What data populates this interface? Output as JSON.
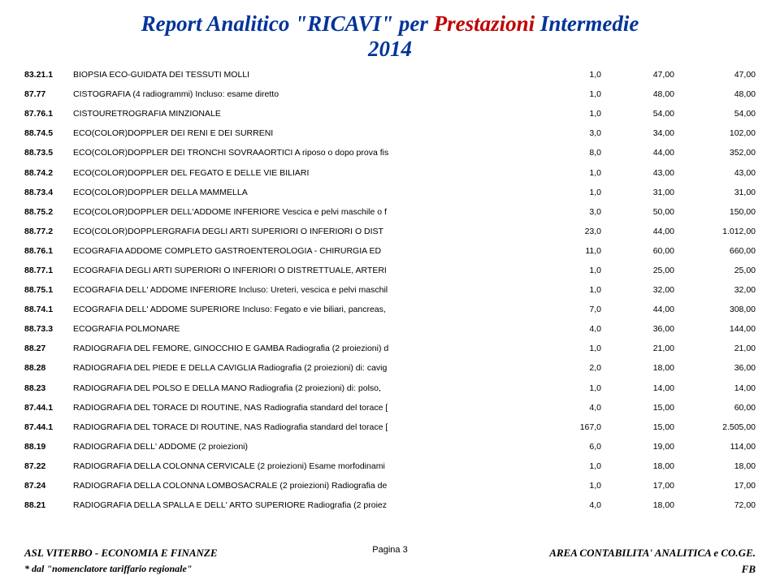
{
  "header": {
    "title_part1": "Report Analitico \"RICAVI\" per",
    "title_part2": " Prestazioni",
    "title_part3": "  Intermedie",
    "year": "2014"
  },
  "rows": [
    {
      "code": "83.21.1",
      "desc": "BIOPSIA ECO-GUIDATA DEI TESSUTI MOLLI",
      "n1": "1,0",
      "n2": "47,00",
      "n3": "47,00"
    },
    {
      "code": "87.77",
      "desc": "CISTOGRAFIA (4 radiogrammi) Incluso: esame diretto",
      "n1": "1,0",
      "n2": "48,00",
      "n3": "48,00"
    },
    {
      "code": "87.76.1",
      "desc": "CISTOURETROGRAFIA MINZIONALE",
      "n1": "1,0",
      "n2": "54,00",
      "n3": "54,00"
    },
    {
      "code": "88.74.5",
      "desc": "ECO(COLOR)DOPPLER DEI RENI E DEI SURRENI",
      "n1": "3,0",
      "n2": "34,00",
      "n3": "102,00"
    },
    {
      "code": "88.73.5",
      "desc": "ECO(COLOR)DOPPLER DEI TRONCHI SOVRAAORTICI A riposo o dopo prova fis",
      "n1": "8,0",
      "n2": "44,00",
      "n3": "352,00"
    },
    {
      "code": "88.74.2",
      "desc": "ECO(COLOR)DOPPLER DEL FEGATO E DELLE VIE BILIARI",
      "n1": "1,0",
      "n2": "43,00",
      "n3": "43,00"
    },
    {
      "code": "88.73.4",
      "desc": "ECO(COLOR)DOPPLER DELLA MAMMELLA",
      "n1": "1,0",
      "n2": "31,00",
      "n3": "31,00"
    },
    {
      "code": "88.75.2",
      "desc": "ECO(COLOR)DOPPLER DELL'ADDOME INFERIORE Vescica e pelvi maschile o f",
      "n1": "3,0",
      "n2": "50,00",
      "n3": "150,00"
    },
    {
      "code": "88.77.2",
      "desc": "ECO(COLOR)DOPPLERGRAFIA DEGLI ARTI SUPERIORI O INFERIORI O DIST",
      "n1": "23,0",
      "n2": "44,00",
      "n3": "1.012,00"
    },
    {
      "code": "88.76.1",
      "desc": "ECOGRAFIA ADDOME COMPLETO GASTROENTEROLOGIA - CHIRURGIA ED",
      "n1": "11,0",
      "n2": "60,00",
      "n3": "660,00"
    },
    {
      "code": "88.77.1",
      "desc": "ECOGRAFIA DEGLI ARTI SUPERIORI O INFERIORI O DISTRETTUALE, ARTERI",
      "n1": "1,0",
      "n2": "25,00",
      "n3": "25,00"
    },
    {
      "code": "88.75.1",
      "desc": "ECOGRAFIA DELL' ADDOME INFERIORE Incluso: Ureteri, vescica e pelvi maschil",
      "n1": "1,0",
      "n2": "32,00",
      "n3": "32,00"
    },
    {
      "code": "88.74.1",
      "desc": "ECOGRAFIA DELL' ADDOME SUPERIORE Incluso: Fegato e vie biliari, pancreas,",
      "n1": "7,0",
      "n2": "44,00",
      "n3": "308,00"
    },
    {
      "code": "88.73.3",
      "desc": "ECOGRAFIA POLMONARE",
      "n1": "4,0",
      "n2": "36,00",
      "n3": "144,00"
    },
    {
      "code": "88.27",
      "desc": "RADIOGRAFIA DEL FEMORE, GINOCCHIO E GAMBA Radiografia (2 proiezioni) d",
      "n1": "1,0",
      "n2": "21,00",
      "n3": "21,00"
    },
    {
      "code": "88.28",
      "desc": "RADIOGRAFIA DEL PIEDE E DELLA CAVIGLIA Radiografia (2 proiezioni) di: cavig",
      "n1": "2,0",
      "n2": "18,00",
      "n3": "36,00"
    },
    {
      "code": "88.23",
      "desc": "RADIOGRAFIA DEL POLSO E DELLA MANO Radiografia (2 proiezioni) di: polso,",
      "n1": "1,0",
      "n2": "14,00",
      "n3": "14,00"
    },
    {
      "code": "87.44.1",
      "desc": "RADIOGRAFIA DEL TORACE DI ROUTINE, NAS Radiografia standard del torace [",
      "n1": "4,0",
      "n2": "15,00",
      "n3": "60,00"
    },
    {
      "code": "87.44.1",
      "desc": "RADIOGRAFIA DEL TORACE DI ROUTINE, NAS Radiografia standard del torace [",
      "n1": "167,0",
      "n2": "15,00",
      "n3": "2.505,00"
    },
    {
      "code": "88.19",
      "desc": "RADIOGRAFIA DELL' ADDOME (2 proiezioni)",
      "n1": "6,0",
      "n2": "19,00",
      "n3": "114,00"
    },
    {
      "code": "87.22",
      "desc": "RADIOGRAFIA DELLA COLONNA CERVICALE (2 proiezioni) Esame morfodinami",
      "n1": "1,0",
      "n2": "18,00",
      "n3": "18,00"
    },
    {
      "code": "87.24",
      "desc": "RADIOGRAFIA DELLA COLONNA LOMBOSACRALE (2 proiezioni) Radiografia de",
      "n1": "1,0",
      "n2": "17,00",
      "n3": "17,00"
    },
    {
      "code": "88.21",
      "desc": "RADIOGRAFIA DELLA SPALLA E DELL' ARTO SUPERIORE Radiografia (2 proiez",
      "n1": "4,0",
      "n2": "18,00",
      "n3": "72,00"
    }
  ],
  "footer": {
    "left": "ASL VITERBO - ECONOMIA E FINANZE",
    "center": "Pagina 3",
    "right": "AREA CONTABILITA' ANALITICA e CO.GE.",
    "bot_left": "* dal \"nomenclatore tariffario regionale\"",
    "bot_right": "FB"
  }
}
